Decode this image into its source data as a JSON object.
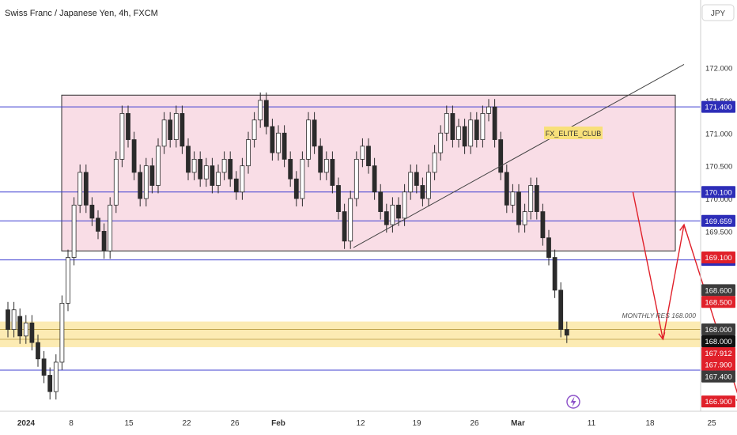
{
  "header": {
    "title": "Swiss Franc / Japanese Yen, 4h, FXCM",
    "currency": "JPY"
  },
  "colors": {
    "background": "#ffffff",
    "candle": "#2b2b2b",
    "range_box_fill": "#f9dde6",
    "range_box_stroke": "#2b2b2b",
    "level_line": "#3f3fd1",
    "level_badge": "#2d2db8",
    "red_badge": "#e0202a",
    "dark_badge": "#3c3c3c",
    "black_badge": "#111111",
    "support_zone": "#fbe7a6",
    "projection": "#e0202a",
    "label_box": "#f8e07a",
    "axis_text": "#333333",
    "grid_text": "#555555"
  },
  "chart_data": {
    "type": "candlestick",
    "title": "Swiss Franc / Japanese Yen, 4h, FXCM",
    "ylim": [
      166.75,
      172.55
    ],
    "x_ticks": [
      "2024",
      "8",
      "15",
      "22",
      "26",
      "Feb",
      "12",
      "19",
      "26",
      "Mar",
      "11",
      "18",
      "25"
    ],
    "y_ticks": [
      "172.000",
      "171.500",
      "171.000",
      "170.500",
      "170.000",
      "169.500"
    ],
    "levels": [
      {
        "value": 171.4,
        "label": "171.400",
        "kind": "blue"
      },
      {
        "value": 170.1,
        "label": "170.100",
        "kind": "blue"
      },
      {
        "value": 169.659,
        "label": "169.659",
        "kind": "blue"
      },
      {
        "value": 169.063,
        "label": "169.063",
        "kind": "blue"
      },
      {
        "value": 167.379,
        "label": "167.379",
        "kind": "blue"
      }
    ],
    "price_badges": [
      {
        "value": 169.1,
        "label": "169.100",
        "kind": "red"
      },
      {
        "value": 168.6,
        "label": "168.600",
        "kind": "dark"
      },
      {
        "value": 168.5,
        "label": "168.500",
        "kind": "red"
      },
      {
        "value": 168.0,
        "label": "168.000",
        "kind": "dark"
      },
      {
        "value": 168.0,
        "label": "168.000",
        "kind": "black"
      },
      {
        "value": 167.912,
        "label": "167.912",
        "sublabel": "03:17:55",
        "kind": "red"
      },
      {
        "value": 167.9,
        "label": "167.900",
        "kind": "red"
      },
      {
        "value": 167.4,
        "label": "167.400",
        "kind": "dark"
      },
      {
        "value": 166.9,
        "label": "166.900",
        "kind": "red"
      }
    ],
    "range_box": {
      "top": 171.58,
      "bottom": 169.2
    },
    "support_zone": {
      "top": 168.0,
      "bottom": 167.85
    },
    "annotations": [
      {
        "text": "FX_ELITE_CLUB",
        "style": "boxed"
      },
      {
        "text": "MONTHLY RES 168.000",
        "style": "italic"
      }
    ],
    "trendline": {
      "from": [
        11.5,
        169.25
      ],
      "to": [
        22.5,
        172.05
      ]
    },
    "projection_path": [
      [
        20.8,
        170.1
      ],
      [
        21.8,
        167.85
      ],
      [
        22.5,
        169.6
      ],
      [
        24.4,
        166.85
      ]
    ],
    "candles": [
      [
        0.0,
        168.3,
        168.0
      ],
      [
        0.2,
        168.0,
        168.3
      ],
      [
        0.4,
        168.2,
        167.9
      ],
      [
        0.6,
        167.9,
        168.1
      ],
      [
        0.8,
        168.1,
        167.8
      ],
      [
        1.0,
        167.8,
        167.55
      ],
      [
        1.2,
        167.55,
        167.3
      ],
      [
        1.4,
        167.3,
        167.05
      ],
      [
        1.6,
        167.05,
        167.5
      ],
      [
        1.8,
        167.5,
        168.4
      ],
      [
        2.0,
        168.4,
        169.1
      ],
      [
        2.2,
        169.1,
        169.9
      ],
      [
        2.4,
        169.9,
        170.4
      ],
      [
        2.6,
        170.4,
        169.9
      ],
      [
        2.8,
        169.9,
        169.7
      ],
      [
        3.0,
        169.7,
        169.5
      ],
      [
        3.2,
        169.5,
        169.2
      ],
      [
        3.4,
        169.2,
        169.9
      ],
      [
        3.6,
        169.9,
        170.6
      ],
      [
        3.8,
        170.6,
        171.3
      ],
      [
        4.0,
        171.3,
        170.9
      ],
      [
        4.2,
        170.9,
        170.4
      ],
      [
        4.4,
        170.4,
        170.0
      ],
      [
        4.6,
        170.0,
        170.5
      ],
      [
        4.8,
        170.5,
        170.2
      ],
      [
        5.0,
        170.2,
        170.8
      ],
      [
        5.2,
        170.8,
        171.2
      ],
      [
        5.4,
        171.2,
        170.9
      ],
      [
        5.6,
        170.9,
        171.3
      ],
      [
        5.8,
        171.3,
        170.8
      ],
      [
        6.0,
        170.8,
        170.4
      ],
      [
        6.2,
        170.4,
        170.6
      ],
      [
        6.4,
        170.6,
        170.3
      ],
      [
        6.6,
        170.3,
        170.5
      ],
      [
        6.8,
        170.5,
        170.2
      ],
      [
        7.0,
        170.2,
        170.4
      ],
      [
        7.2,
        170.4,
        170.6
      ],
      [
        7.4,
        170.6,
        170.3
      ],
      [
        7.6,
        170.3,
        170.1
      ],
      [
        7.8,
        170.1,
        170.5
      ],
      [
        8.0,
        170.5,
        170.9
      ],
      [
        8.2,
        170.9,
        171.2
      ],
      [
        8.4,
        171.2,
        171.5
      ],
      [
        8.6,
        171.5,
        171.1
      ],
      [
        8.8,
        171.1,
        170.7
      ],
      [
        9.0,
        170.7,
        171.0
      ],
      [
        9.2,
        171.0,
        170.6
      ],
      [
        9.4,
        170.6,
        170.3
      ],
      [
        9.6,
        170.3,
        170.0
      ],
      [
        9.8,
        170.0,
        170.6
      ],
      [
        10.0,
        170.6,
        171.2
      ],
      [
        10.2,
        171.2,
        170.8
      ],
      [
        10.4,
        170.8,
        170.4
      ],
      [
        10.6,
        170.4,
        170.6
      ],
      [
        10.8,
        170.6,
        170.2
      ],
      [
        11.0,
        170.2,
        169.8
      ],
      [
        11.2,
        169.8,
        169.35
      ],
      [
        11.4,
        169.35,
        170.0
      ],
      [
        11.6,
        170.0,
        170.6
      ],
      [
        11.8,
        170.6,
        170.8
      ],
      [
        12.0,
        170.8,
        170.5
      ],
      [
        12.2,
        170.5,
        170.1
      ],
      [
        12.4,
        170.1,
        169.8
      ],
      [
        12.6,
        169.8,
        169.6
      ],
      [
        12.8,
        169.6,
        169.9
      ],
      [
        13.0,
        169.9,
        169.7
      ],
      [
        13.2,
        169.7,
        170.1
      ],
      [
        13.4,
        170.1,
        170.4
      ],
      [
        13.6,
        170.4,
        170.2
      ],
      [
        13.8,
        170.2,
        170.0
      ],
      [
        14.0,
        170.0,
        170.4
      ],
      [
        14.2,
        170.4,
        170.7
      ],
      [
        14.4,
        170.7,
        171.0
      ],
      [
        14.6,
        171.0,
        171.3
      ],
      [
        14.8,
        171.3,
        170.9
      ],
      [
        15.0,
        170.9,
        171.1
      ],
      [
        15.2,
        171.1,
        170.8
      ],
      [
        15.4,
        170.8,
        171.2
      ],
      [
        15.6,
        171.2,
        170.9
      ],
      [
        15.8,
        170.9,
        171.3
      ],
      [
        16.0,
        171.3,
        171.4
      ],
      [
        16.2,
        171.4,
        170.9
      ],
      [
        16.4,
        170.9,
        170.4
      ],
      [
        16.6,
        170.4,
        169.9
      ],
      [
        16.8,
        169.9,
        170.1
      ],
      [
        17.0,
        170.1,
        169.6
      ],
      [
        17.2,
        169.6,
        169.8
      ],
      [
        17.4,
        169.8,
        170.2
      ],
      [
        17.6,
        170.2,
        169.8
      ],
      [
        17.8,
        169.8,
        169.4
      ],
      [
        18.0,
        169.4,
        169.1
      ],
      [
        18.2,
        169.1,
        168.6
      ],
      [
        18.4,
        168.6,
        168.0
      ],
      [
        18.6,
        168.0,
        167.912
      ]
    ]
  }
}
